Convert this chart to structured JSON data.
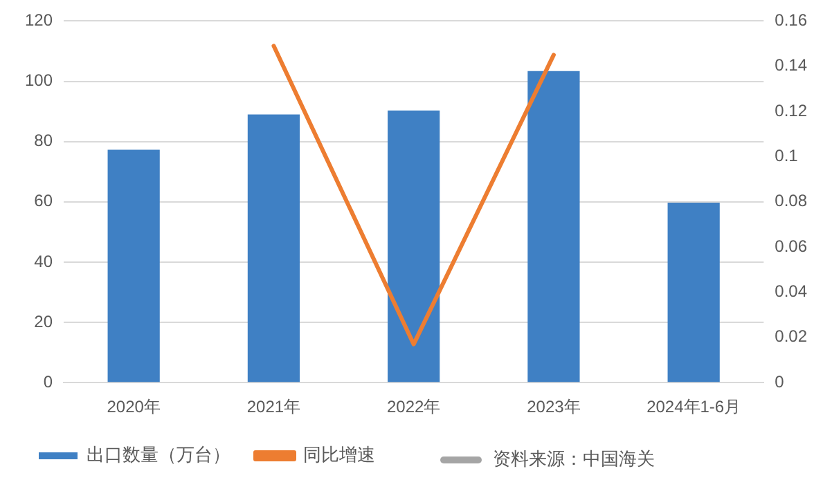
{
  "chart_data": {
    "type": "bar",
    "categories": [
      "2020年",
      "2021年",
      "2022年",
      "2023年",
      "2024年1-6月"
    ],
    "series": [
      {
        "name": "出口数量（万台）",
        "color": "#3f80c4",
        "values": [
          77.3,
          89,
          90.3,
          103.4,
          59.7
        ]
      },
      {
        "name": "同比增速",
        "type": "line",
        "axis": "y2",
        "color": "#ed7d31",
        "values": [
          null,
          0.149,
          0.017,
          0.145,
          null
        ]
      }
    ],
    "ylim": [
      0,
      120
    ],
    "yticks": [
      0,
      20,
      40,
      60,
      80,
      100,
      120
    ],
    "y2lim": [
      0,
      0.16
    ],
    "y2ticks": [
      0,
      0.02,
      0.04,
      0.06,
      0.08,
      0.1,
      0.12,
      0.14,
      0.16
    ],
    "grid": "y",
    "legend": "bottom",
    "marker": "none",
    "line_style": "solid",
    "annotations": [
      "资料来源：中国海关"
    ]
  }
}
